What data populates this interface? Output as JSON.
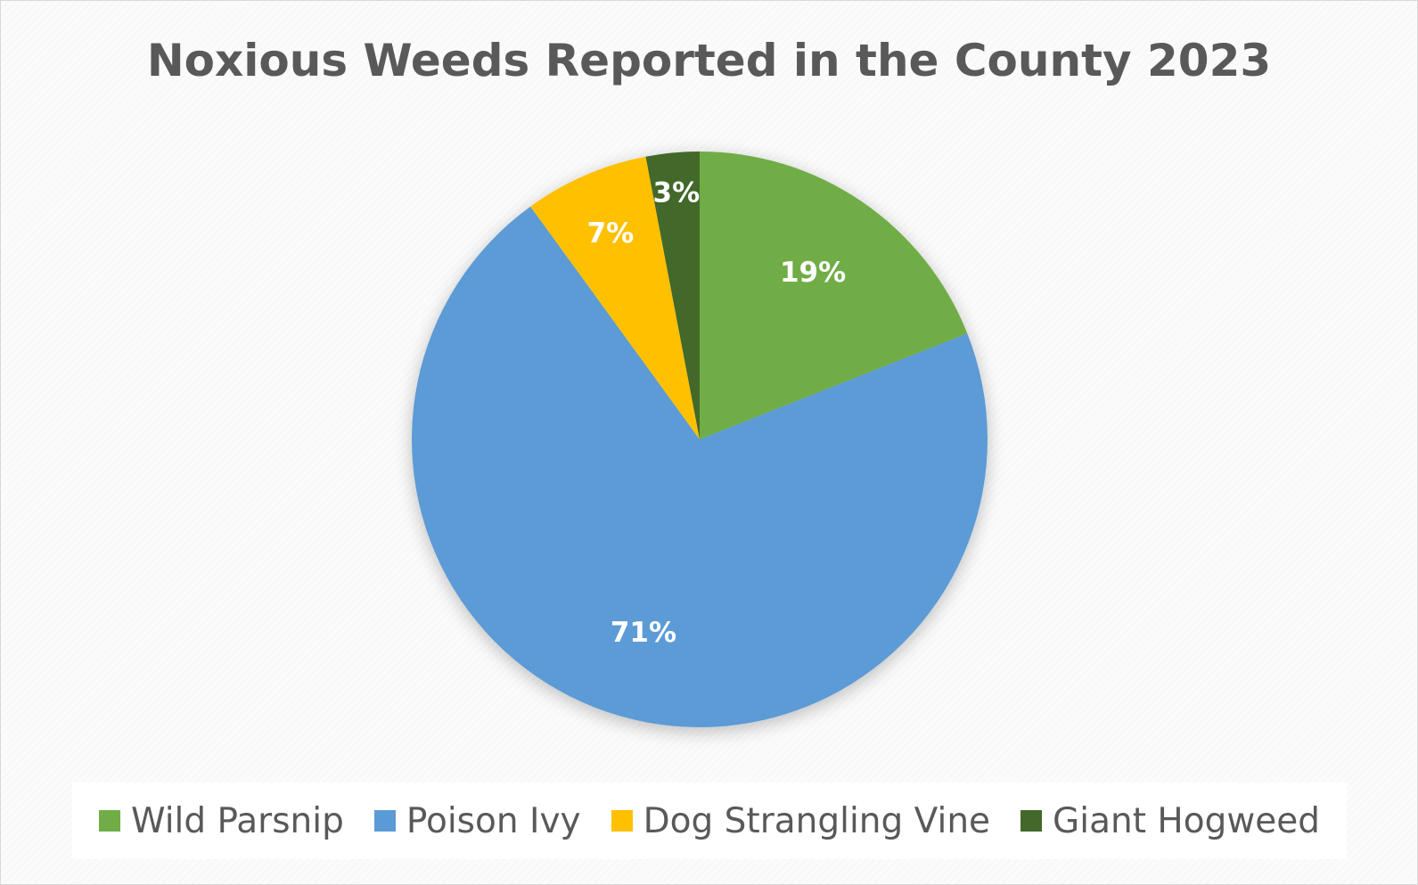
{
  "chart_data": {
    "type": "pie",
    "title": "Noxious Weeds Reported in the County 2023",
    "legend_position": "bottom",
    "slices": [
      {
        "name": "Wild Parsnip",
        "value": 19,
        "label": "19%",
        "color": "#70ad47"
      },
      {
        "name": "Poison Ivy",
        "value": 71,
        "label": "71%",
        "color": "#5b9bd5"
      },
      {
        "name": "Dog Strangling Vine",
        "value": 7,
        "label": "7%",
        "color": "#ffc000"
      },
      {
        "name": "Giant Hogweed",
        "value": 3,
        "label": "3%",
        "color": "#43682b"
      }
    ]
  }
}
